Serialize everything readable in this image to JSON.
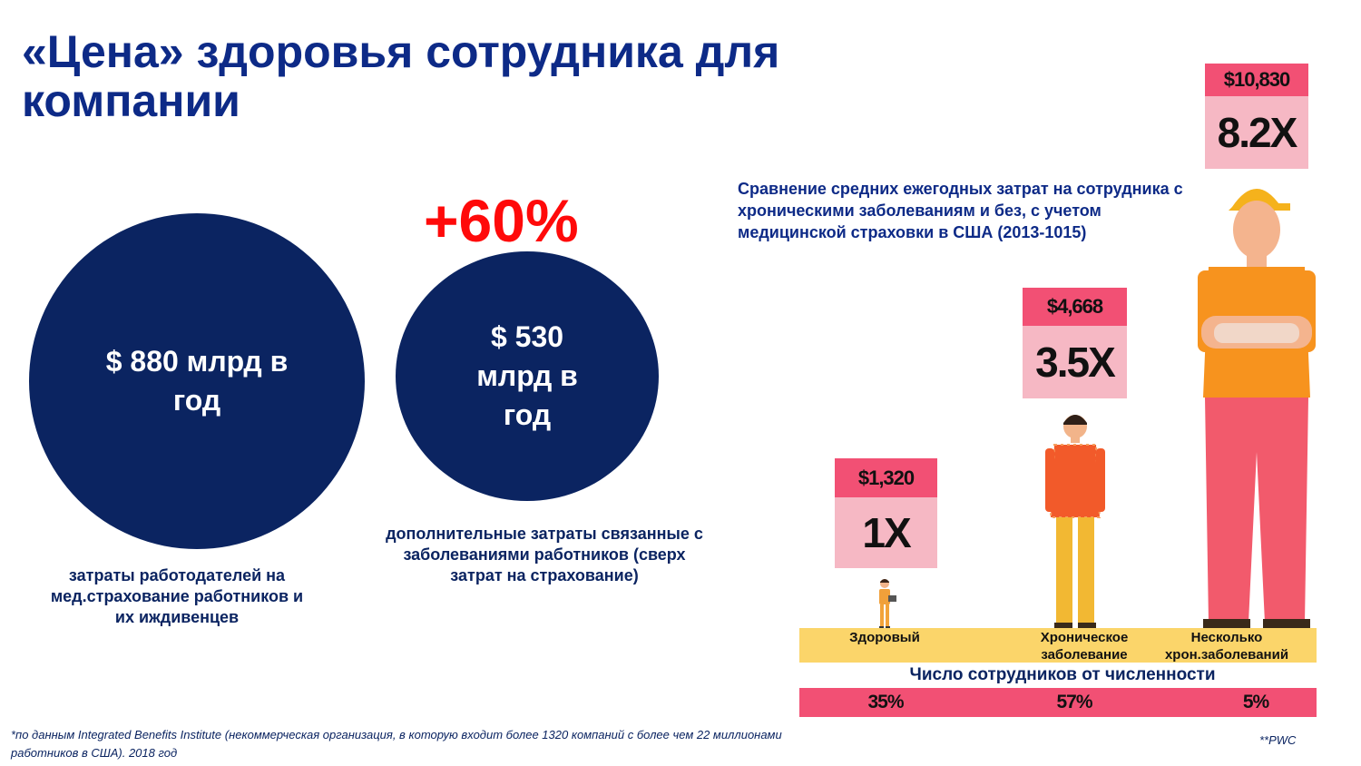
{
  "title": "«Цена» здоровья сотрудника для компании",
  "plus_percent": "+60%",
  "circles": [
    {
      "text": "$ 880 млрд в год",
      "caption": "затраты работодателей на мед.страхование работников и их иждивенцев"
    },
    {
      "text": "$ 530 млрд в год",
      "caption": "дополнительные затраты связанные с заболеваниями работников (сверх затрат на страхование)"
    }
  ],
  "comparison": {
    "description": "Сравнение средних ежегодных затрат на сотрудника с хроническими заболеваниям и без, с учетом медицинской страховки в США (2013-1015)",
    "groups": [
      {
        "category": "Здоровый",
        "amount": "$1,320",
        "multiplier": "1X",
        "share": "35%"
      },
      {
        "category": "Хроническое заболевание",
        "amount": "$4,668",
        "multiplier": "3.5X",
        "share": "57%"
      },
      {
        "category": "Несколько хрон.заболеваний",
        "amount": "$10,830",
        "multiplier": "8.2X",
        "share": "5%"
      }
    ],
    "share_title": "Число сотрудников от численности"
  },
  "colors": {
    "navy": "#0b2461",
    "title_blue": "#0d2a87",
    "accent_red": "#ff0a0a",
    "amount_pink": "#f25074",
    "multiplier_pink": "#f6b8c4",
    "band_yellow": "#fbd56a"
  },
  "footnote": "*по данным Integrated Benefits Institute (некоммерческая организация, в которую входит более 1320 компаний с более чем 22 миллионами работников в США). 2018 год",
  "source_note": "**PWC"
}
